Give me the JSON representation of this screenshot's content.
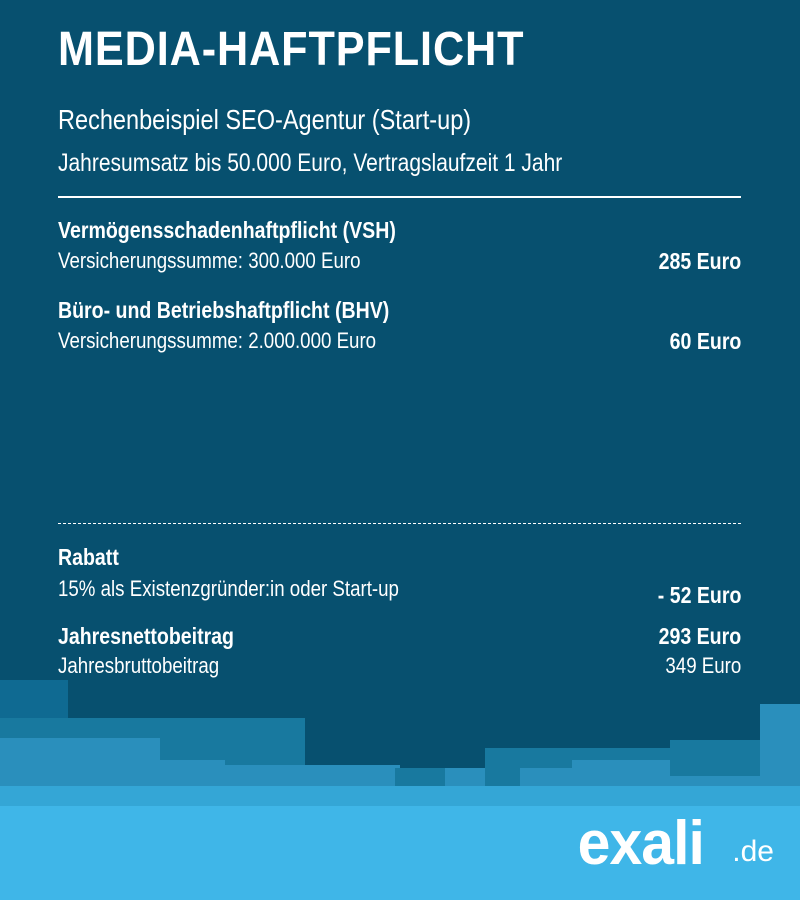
{
  "title": "MEDIA-HAFTPFLICHT",
  "subtitle": "Rechenbeispiel SEO-Agentur (Start-up)",
  "subline": "Jahresumsatz bis 50.000 Euro, Vertragslaufzeit 1 Jahr",
  "items": [
    {
      "heading": "Vermögensschadenhaftpflicht (VSH)",
      "detail": "Versicherungssumme: 300.000 Euro",
      "price": "285 Euro"
    },
    {
      "heading": "Büro- und Betriebshaftpflicht (BHV)",
      "detail": "Versicherungssumme: 2.000.000 Euro",
      "price": "60 Euro"
    }
  ],
  "discount": {
    "heading": "Rabatt",
    "detail": "15% als Existenzgründer:in oder Start-up",
    "price": "- 52 Euro"
  },
  "net": {
    "label": "Jahresnettobeitrag",
    "price": "293 Euro"
  },
  "gross": {
    "label": "Jahresbruttobeitrag",
    "price": "349 Euro"
  },
  "logo": {
    "name": "exali",
    "tld": ".de"
  },
  "colors": {
    "background": "#07506f",
    "accent_light": "#3fb6e8",
    "text": "#ffffff"
  }
}
